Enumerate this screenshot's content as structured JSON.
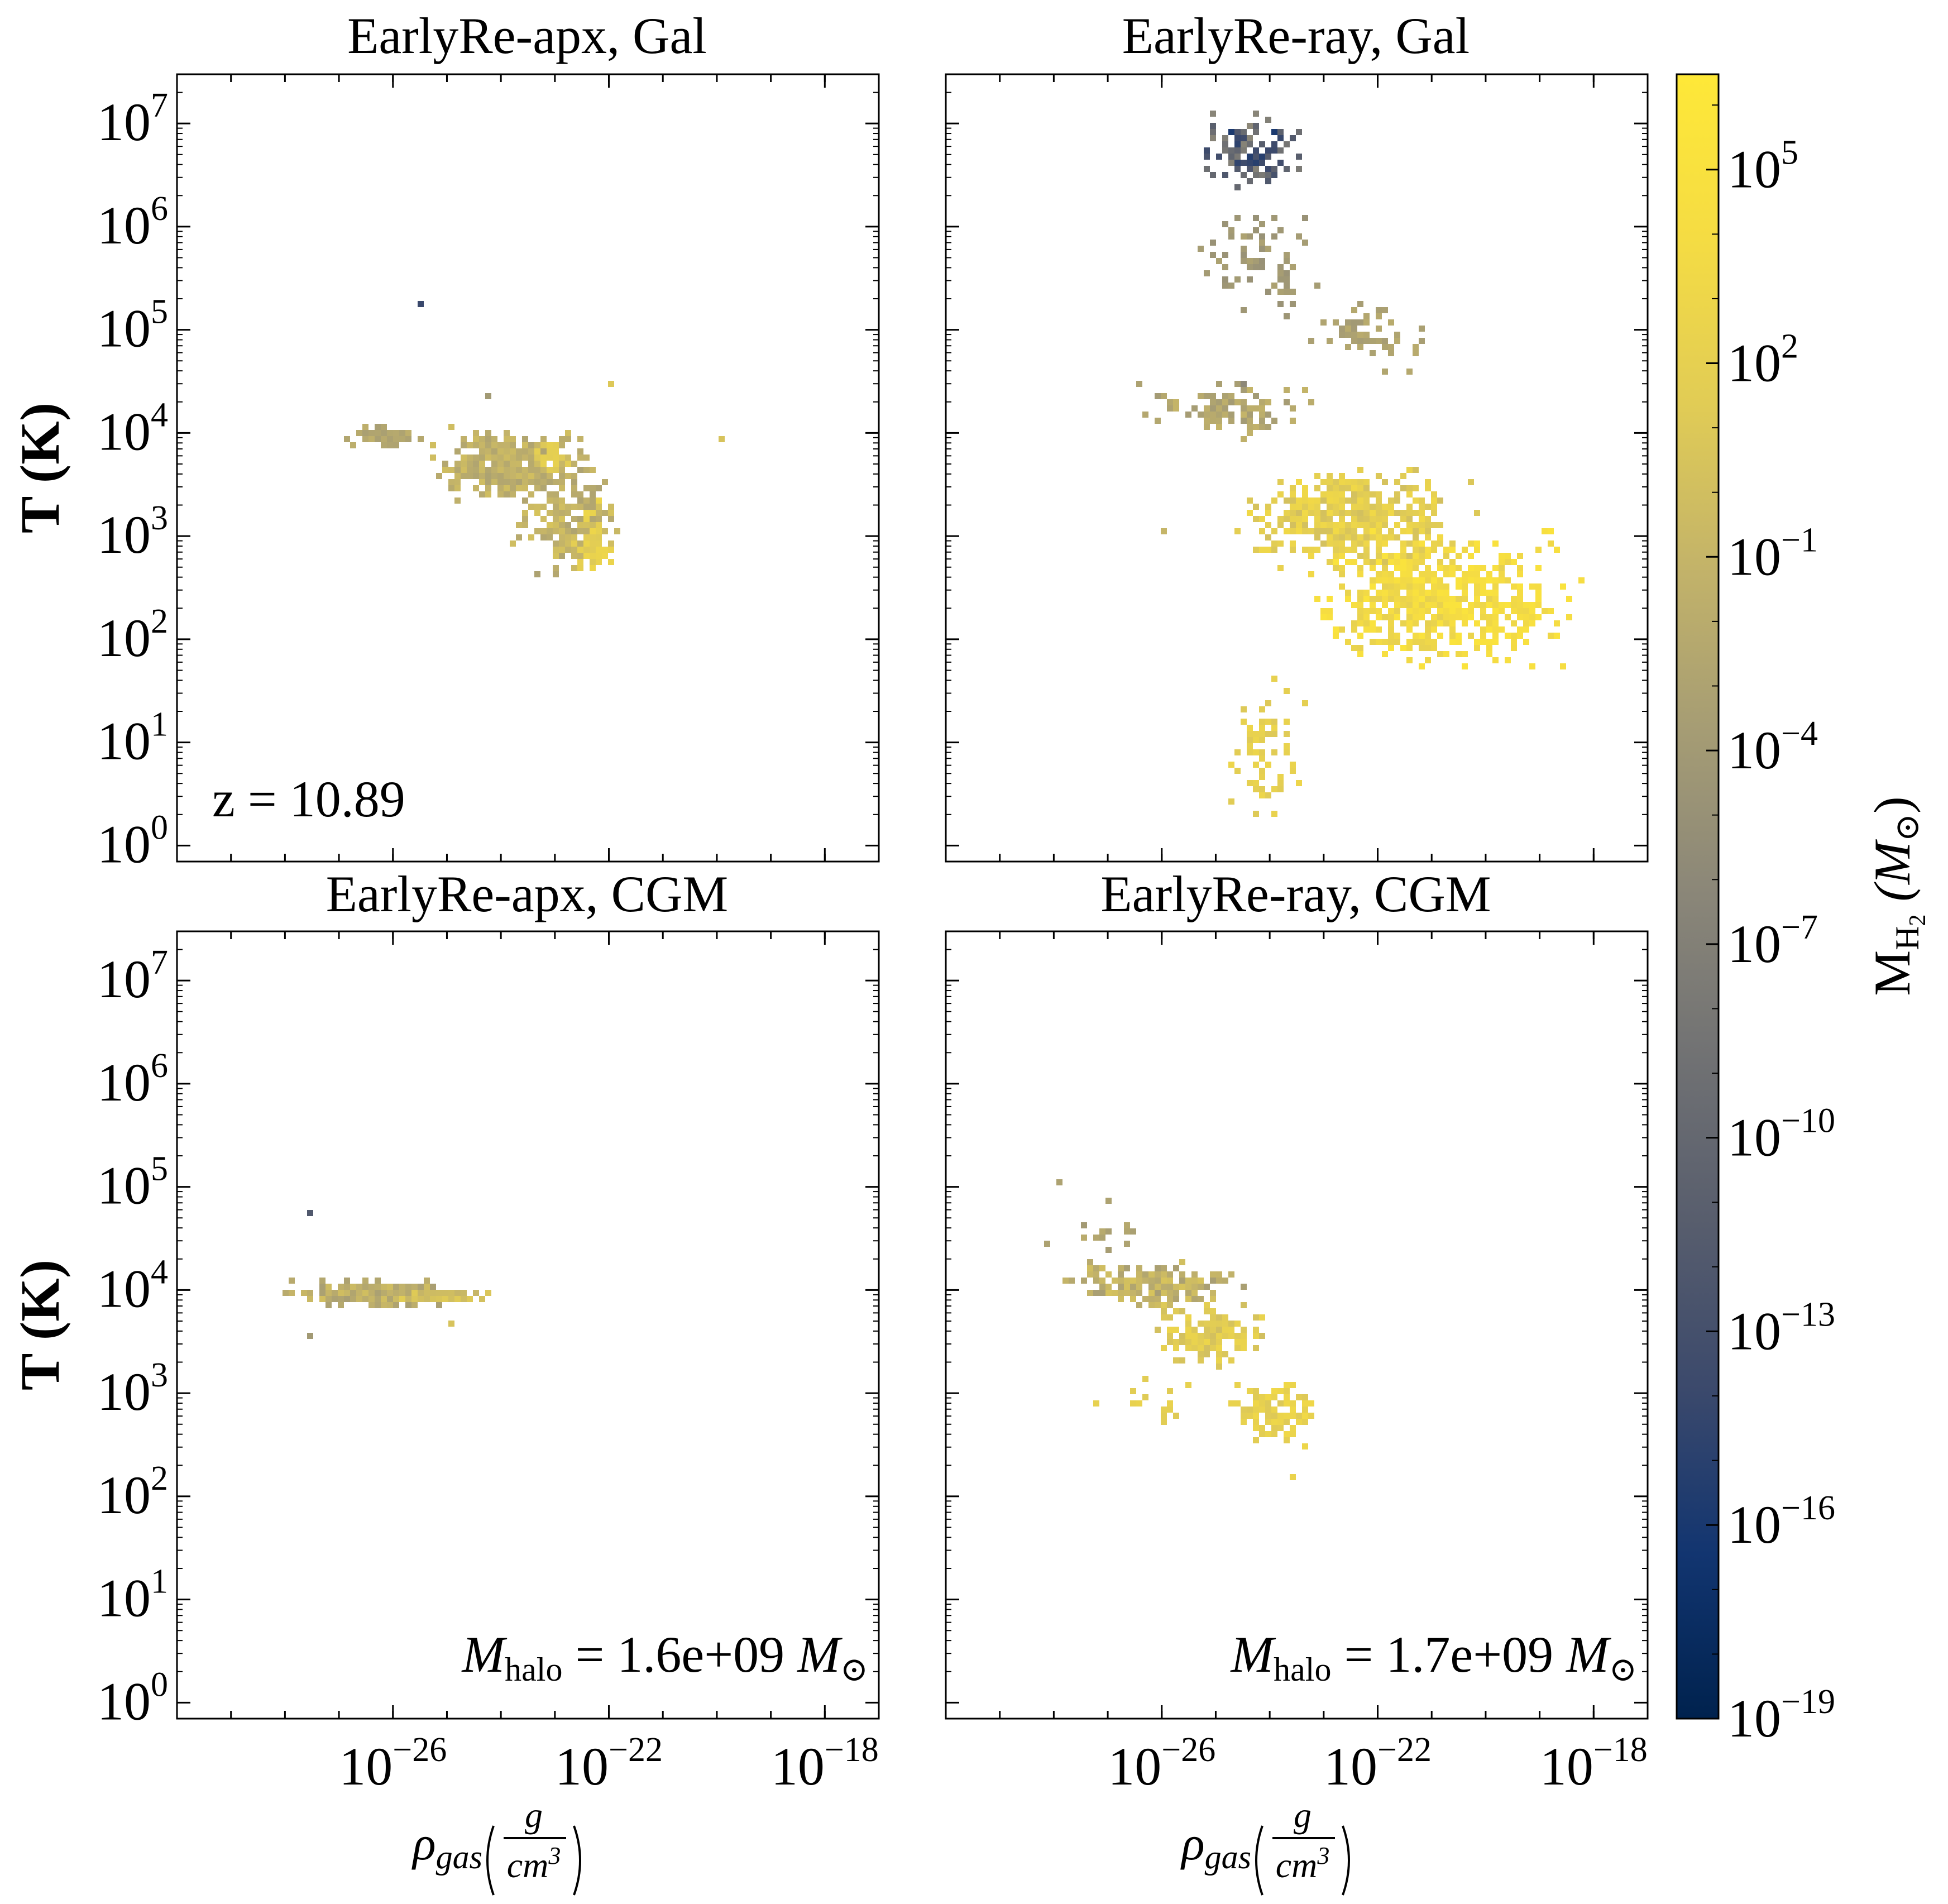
{
  "chart_data": {
    "type": "heatmap",
    "description_axes": {
      "x_scale": "log",
      "y_scale": "log",
      "xlim": [
        1e-30,
        1e-17
      ],
      "ylim": [
        0.7,
        30000000
      ]
    },
    "xlabel_main": "ρ",
    "xlabel_sub": "gas",
    "xlabel_frac_num": "g",
    "xlabel_frac_den": "cm",
    "xlabel_frac_den_exp": "3",
    "ylabel": "T (K)",
    "x_ticks": [
      {
        "base": "10",
        "exp": "−26",
        "value": 1e-26
      },
      {
        "base": "10",
        "exp": "−22",
        "value": 1e-22
      },
      {
        "base": "10",
        "exp": "−18",
        "value": 1e-18
      }
    ],
    "y_ticks": [
      {
        "base": "10",
        "exp": "0",
        "value": 1
      },
      {
        "base": "10",
        "exp": "1",
        "value": 10
      },
      {
        "base": "10",
        "exp": "2",
        "value": 100
      },
      {
        "base": "10",
        "exp": "3",
        "value": 1000
      },
      {
        "base": "10",
        "exp": "4",
        "value": 10000
      },
      {
        "base": "10",
        "exp": "5",
        "value": 100000
      },
      {
        "base": "10",
        "exp": "6",
        "value": 1000000
      },
      {
        "base": "10",
        "exp": "7",
        "value": 10000000
      }
    ],
    "colorbar": {
      "label_main": "M",
      "label_sub": "H",
      "label_sub2": "2",
      "label_unit": "(M",
      "label_unit_sun": "⊙",
      "label_close": ")",
      "scale": "log",
      "range": [
        1e-19,
        3000000.0
      ],
      "colormap": "cividis",
      "ticks": [
        {
          "base": "10",
          "exp": "5",
          "value": 100000.0
        },
        {
          "base": "10",
          "exp": "2",
          "value": 100.0
        },
        {
          "base": "10",
          "exp": "−1",
          "value": 0.1
        },
        {
          "base": "10",
          "exp": "−4",
          "value": 0.0001
        },
        {
          "base": "10",
          "exp": "−7",
          "value": 1e-07
        },
        {
          "base": "10",
          "exp": "−10",
          "value": 1e-10
        },
        {
          "base": "10",
          "exp": "−13",
          "value": 1e-13
        },
        {
          "base": "10",
          "exp": "−16",
          "value": 1e-16
        },
        {
          "base": "10",
          "exp": "−19",
          "value": 1e-19
        }
      ]
    },
    "panels": [
      {
        "title": "EarlyRe-apx, Gal",
        "annotation": "z = 10.89",
        "clusters": [
          {
            "x_log": [
              -27.0,
              -25.4
            ],
            "y_log": [
              3.9,
              4.1
            ],
            "n": 80,
            "c_log": [
              -3.5,
              -1.5
            ]
          },
          {
            "x_log": [
              -25.8,
              -22.0
            ],
            "y_log": [
              3.3,
              4.15
            ],
            "n": 360,
            "c_log": [
              -3.0,
              0.0
            ]
          },
          {
            "x_log": [
              -24.0,
              -21.6
            ],
            "y_log": [
              2.6,
              3.8
            ],
            "n": 170,
            "c_log": [
              -3.0,
              0.5
            ]
          },
          {
            "x_log": [
              -22.8,
              -21.9
            ],
            "y_log": [
              2.45,
              3.4
            ],
            "n": 45,
            "c_log": [
              1.0,
              3.0
            ]
          },
          {
            "x_log": [
              -23.6,
              -22.6
            ],
            "y_log": [
              3.6,
              4.0
            ],
            "n": 30,
            "c_log": [
              1.0,
              2.5
            ]
          }
        ],
        "points": [
          {
            "x_log": -25.5,
            "y_log": 5.3,
            "c_log": -14.0
          },
          {
            "x_log": -24.3,
            "y_log": 4.38,
            "c_log": -4.0
          },
          {
            "x_log": -22.0,
            "y_log": 4.5,
            "c_log": 1.0
          },
          {
            "x_log": -20.0,
            "y_log": 3.95,
            "c_log": 0.5
          }
        ]
      },
      {
        "title": "EarlyRe-ray, Gal",
        "annotation": "",
        "clusters": [
          {
            "x_log": [
              -25.5,
              -23.2
            ],
            "y_log": [
              6.3,
              7.2
            ],
            "n": 120,
            "c_log": [
              -16.0,
              -6.0
            ]
          },
          {
            "x_log": [
              -25.5,
              -23.0
            ],
            "y_log": [
              5.0,
              6.3
            ],
            "n": 70,
            "c_log": [
              -5.0,
              -3.0
            ]
          },
          {
            "x_log": [
              -23.4,
              -21.0
            ],
            "y_log": [
              4.5,
              5.4
            ],
            "n": 60,
            "c_log": [
              -4.0,
              -2.0
            ]
          },
          {
            "x_log": [
              -26.5,
              -23.0
            ],
            "y_log": [
              3.9,
              4.6
            ],
            "n": 90,
            "c_log": [
              -4.0,
              -1.0
            ]
          },
          {
            "x_log": [
              -25.0,
              -20.0
            ],
            "y_log": [
              2.6,
              3.8
            ],
            "n": 420,
            "c_log": [
              0.0,
              3.5
            ]
          },
          {
            "x_log": [
              -23.5,
              -19.0
            ],
            "y_log": [
              1.6,
              3.2
            ],
            "n": 450,
            "c_log": [
              2.0,
              5.5
            ]
          },
          {
            "x_log": [
              -21.0,
              -18.2
            ],
            "y_log": [
              1.5,
              3.3
            ],
            "n": 120,
            "c_log": [
              3.0,
              5.5
            ]
          },
          {
            "x_log": [
              -25.0,
              -23.2
            ],
            "y_log": [
              0.0,
              2.0
            ],
            "n": 60,
            "c_log": [
              1.0,
              3.0
            ]
          }
        ],
        "points": [
          {
            "x_log": -26.5,
            "y_log": 4.5,
            "c_log": -3.0
          },
          {
            "x_log": -24.5,
            "y_log": 4.5,
            "c_log": -6.0
          },
          {
            "x_log": -26.0,
            "y_log": 3.1,
            "c_log": -1.0
          }
        ]
      },
      {
        "title": "EarlyRe-apx, CGM",
        "annotation": "M",
        "annotation_sub": "halo",
        "annotation_value": " = 1.6e+09 ",
        "annotation_unit": "M",
        "annotation_sun": "⊙",
        "clusters": [
          {
            "x_log": [
              -28.3,
              -24.5
            ],
            "y_log": [
              3.85,
              4.15
            ],
            "n": 260,
            "c_log": [
              -3.5,
              0.0
            ]
          },
          {
            "x_log": [
              -26.5,
              -24.0
            ],
            "y_log": [
              3.9,
              4.05
            ],
            "n": 60,
            "c_log": [
              -1.0,
              1.5
            ]
          }
        ],
        "points": [
          {
            "x_log": -27.6,
            "y_log": 4.8,
            "c_log": -12.0
          },
          {
            "x_log": -27.6,
            "y_log": 3.6,
            "c_log": -4.0
          },
          {
            "x_log": -25.0,
            "y_log": 3.7,
            "c_log": 0.5
          }
        ]
      },
      {
        "title": "EarlyRe-ray, CGM",
        "annotation": "M",
        "annotation_sub": "halo",
        "annotation_value": " = 1.7e+09 ",
        "annotation_unit": "M",
        "annotation_sun": "⊙",
        "clusters": [
          {
            "x_log": [
              -28.0,
              -24.3
            ],
            "y_log": [
              3.8,
              4.35
            ],
            "n": 170,
            "c_log": [
              -3.5,
              0.5
            ]
          },
          {
            "x_log": [
              -26.5,
              -23.8
            ],
            "y_log": [
              3.2,
              4.0
            ],
            "n": 130,
            "c_log": [
              0.0,
              3.0
            ]
          },
          {
            "x_log": [
              -25.0,
              -23.0
            ],
            "y_log": [
              2.4,
              3.3
            ],
            "n": 90,
            "c_log": [
              1.0,
              3.5
            ]
          },
          {
            "x_log": [
              -28.5,
              -26.0
            ],
            "y_log": [
              4.2,
              4.8
            ],
            "n": 14,
            "c_log": [
              -4.0,
              -2.0
            ]
          },
          {
            "x_log": [
              -27.5,
              -25.0
            ],
            "y_log": [
              2.6,
              3.3
            ],
            "n": 14,
            "c_log": [
              1.0,
              2.5
            ]
          }
        ],
        "points": [
          {
            "x_log": -28.0,
            "y_log": 5.05,
            "c_log": -3.0
          },
          {
            "x_log": -27.0,
            "y_log": 4.9,
            "c_log": -3.0
          },
          {
            "x_log": -23.6,
            "y_log": 2.2,
            "c_log": 2.5
          }
        ]
      }
    ]
  }
}
